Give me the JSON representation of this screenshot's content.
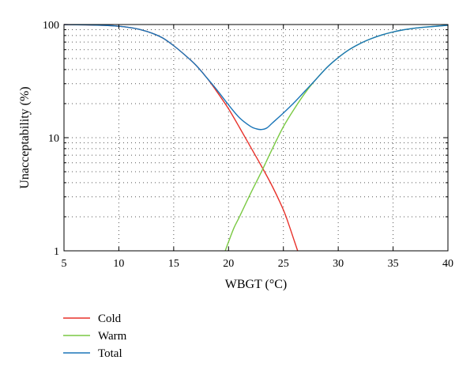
{
  "chart_data": {
    "type": "line",
    "xlabel": "WBGT (°C)",
    "ylabel": "Unacceptability (%)",
    "xlim": [
      5,
      40
    ],
    "ylim": [
      1,
      100
    ],
    "yscale": "log",
    "grid": true,
    "legend_position": "bottom-left",
    "x_ticks": [
      "5",
      "10",
      "15",
      "20",
      "25",
      "30",
      "35",
      "40"
    ],
    "y_ticks": [
      "1",
      "10",
      "100"
    ],
    "series": [
      {
        "name": "Cold",
        "color": "#e8312a",
        "x": [
          5,
          7,
          9,
          10,
          11,
          12,
          13,
          14,
          15,
          16,
          17,
          18,
          19,
          20,
          21,
          22,
          23,
          24,
          25,
          25.5,
          26,
          26.3
        ],
        "y": [
          99.8,
          99.4,
          98,
          96.5,
          94,
          90,
          84,
          76,
          65,
          54,
          44,
          34,
          25,
          18,
          12.3,
          8.3,
          5.6,
          3.7,
          2.3,
          1.7,
          1.22,
          1.0
        ]
      },
      {
        "name": "Warm",
        "color": "#7ac943",
        "x": [
          19.7,
          20,
          20.5,
          21,
          22,
          23,
          24,
          25,
          26,
          27,
          28,
          29,
          30,
          31,
          32,
          33,
          34,
          35,
          36,
          37,
          38,
          40
        ],
        "y": [
          1.0,
          1.2,
          1.6,
          2.0,
          3.2,
          5.0,
          8.0,
          12.5,
          18,
          25,
          33,
          42,
          51,
          60,
          68,
          75,
          81,
          86,
          90,
          93,
          95,
          98.5
        ]
      },
      {
        "name": "Total",
        "color": "#1a75b8",
        "x": [
          5,
          7,
          9,
          10,
          11,
          12,
          13,
          14,
          15,
          16,
          17,
          18,
          19,
          20,
          21,
          22,
          22.5,
          23,
          23.5,
          24,
          25,
          26,
          27,
          28,
          29,
          30,
          31,
          32,
          33,
          34,
          35,
          36,
          37,
          38,
          40
        ],
        "y": [
          99.8,
          99.4,
          98,
          96.5,
          94,
          90,
          84,
          76,
          65,
          54,
          44,
          34,
          26,
          19.5,
          15,
          12.6,
          12.0,
          11.8,
          12.2,
          13.5,
          16.5,
          20.5,
          26,
          33,
          42,
          51,
          60,
          68,
          75,
          81,
          86,
          90,
          93,
          95,
          98.5
        ]
      }
    ]
  }
}
